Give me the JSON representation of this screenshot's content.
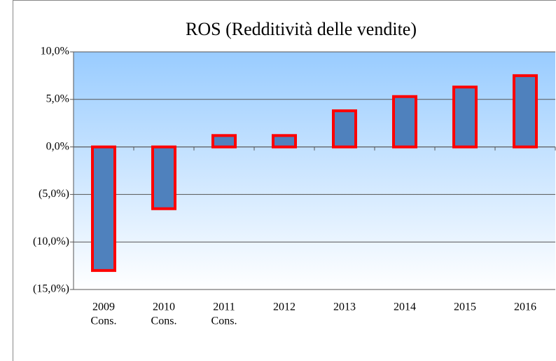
{
  "chart_data": {
    "type": "bar",
    "title": "ROS (Redditività delle vendite)",
    "categories": [
      [
        "2009",
        "Cons."
      ],
      [
        "2010",
        "Cons."
      ],
      [
        "2011",
        "Cons."
      ],
      [
        "2012"
      ],
      [
        "2013"
      ],
      [
        "2014"
      ],
      [
        "2015"
      ],
      [
        "2016"
      ]
    ],
    "values": [
      -13,
      -6.5,
      1.2,
      1.2,
      3.8,
      5.3,
      6.3,
      7.5
    ],
    "color": "#4f81bd",
    "edge_color": "#ff0000",
    "ylim": [
      -15,
      10
    ],
    "yticks": [
      {
        "value": -15,
        "label": "(15,0%)"
      },
      {
        "value": -10,
        "label": "(10,0%)"
      },
      {
        "value": -5,
        "label": "(5,0%)"
      },
      {
        "value": 0,
        "label": "0,0%"
      },
      {
        "value": 5,
        "label": "5,0%"
      },
      {
        "value": 10,
        "label": "10,0%"
      }
    ],
    "grid": true
  }
}
